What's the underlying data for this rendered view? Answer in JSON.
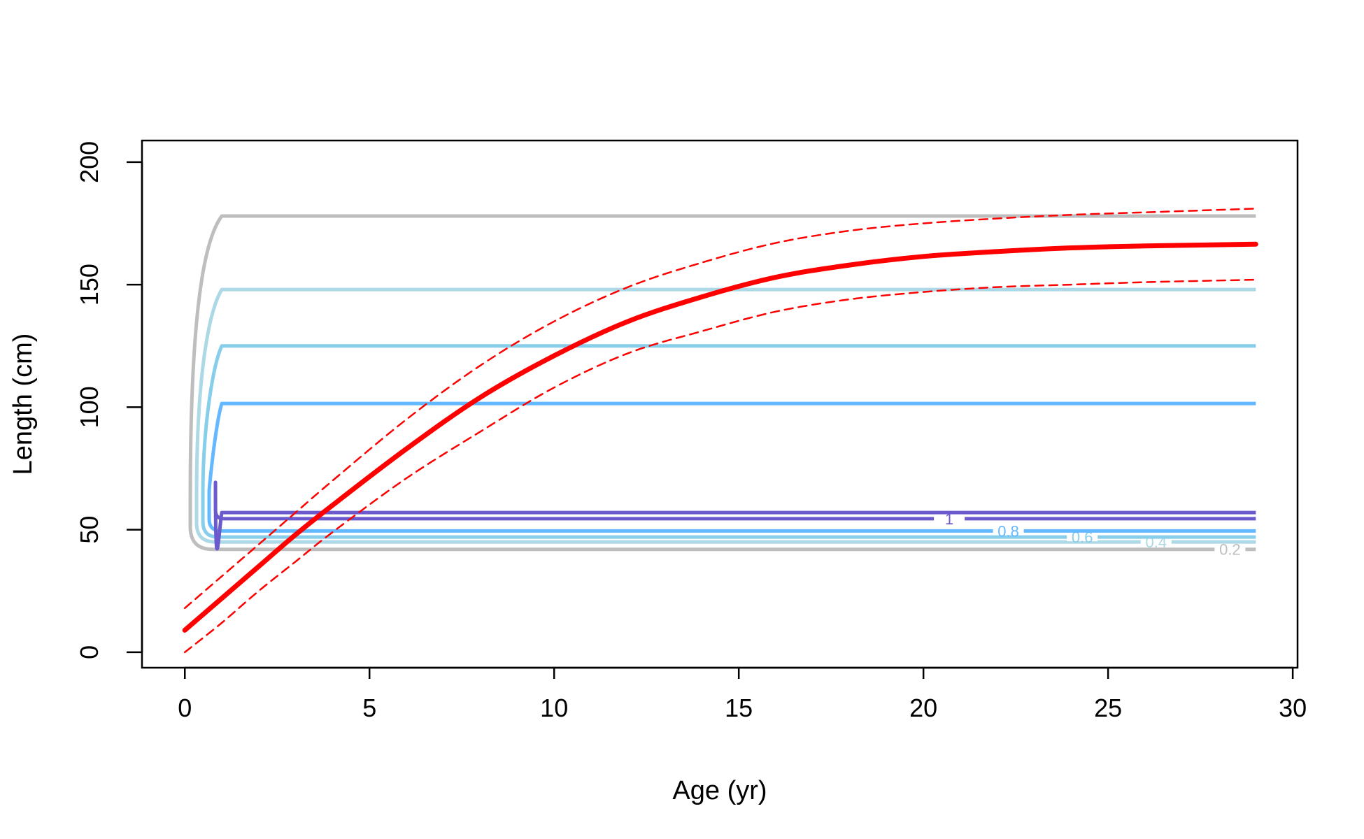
{
  "chart_data": {
    "type": "line",
    "title": "",
    "xlabel": "Age (yr)",
    "ylabel": "Length (cm)",
    "xlim": [
      -1.16,
      30.13
    ],
    "ylim": [
      -6.3,
      208.8
    ],
    "xticks": [
      0,
      5,
      10,
      15,
      20,
      25,
      30
    ],
    "yticks": [
      0,
      50,
      100,
      150,
      200
    ],
    "grid": false,
    "legend": "none",
    "series": [
      {
        "role": "mean",
        "color": "#ff0000",
        "style": "solid",
        "points": [
          [
            0,
            9
          ],
          [
            1,
            22
          ],
          [
            2,
            35
          ],
          [
            3,
            48
          ],
          [
            4,
            60
          ],
          [
            6,
            83
          ],
          [
            8,
            104
          ],
          [
            10,
            121
          ],
          [
            12,
            135
          ],
          [
            14,
            145
          ],
          [
            16,
            153
          ],
          [
            18,
            158
          ],
          [
            20,
            161.5
          ],
          [
            22,
            163.5
          ],
          [
            24,
            165
          ],
          [
            26,
            165.8
          ],
          [
            29,
            166.5
          ]
        ]
      },
      {
        "role": "upper-interval",
        "color": "#ff0000",
        "style": "dashed",
        "points": [
          [
            0,
            18
          ],
          [
            1,
            31
          ],
          [
            2,
            44
          ],
          [
            3,
            57
          ],
          [
            4,
            70
          ],
          [
            6,
            95
          ],
          [
            8,
            117
          ],
          [
            10,
            135
          ],
          [
            12,
            149
          ],
          [
            14,
            159
          ],
          [
            16,
            167
          ],
          [
            18,
            172
          ],
          [
            20,
            175
          ],
          [
            22,
            177
          ],
          [
            24,
            178.5
          ],
          [
            26,
            179.5
          ],
          [
            29,
            181
          ]
        ]
      },
      {
        "role": "lower-interval",
        "color": "#ff0000",
        "style": "dashed",
        "points": [
          [
            0,
            0
          ],
          [
            1,
            12
          ],
          [
            2,
            25
          ],
          [
            3,
            37
          ],
          [
            4,
            49
          ],
          [
            6,
            71
          ],
          [
            8,
            90
          ],
          [
            10,
            108
          ],
          [
            12,
            122
          ],
          [
            14,
            131
          ],
          [
            16,
            139
          ],
          [
            18,
            144
          ],
          [
            20,
            147
          ],
          [
            22,
            149
          ],
          [
            24,
            150
          ],
          [
            26,
            151
          ],
          [
            29,
            152
          ]
        ]
      }
    ],
    "contours": [
      {
        "level": "0.2",
        "color": "#bebebe",
        "top": 178,
        "bottom": 42,
        "label_x": 28.3
      },
      {
        "level": "0.4",
        "color": "#add8e6",
        "top": 148,
        "bottom": 45,
        "label_x": 26.3
      },
      {
        "level": "0.6",
        "color": "#87ceeb",
        "top": 125,
        "bottom": 47,
        "label_x": 24.3
      },
      {
        "level": "0.8",
        "color": "#63b8ff",
        "top": 101.5,
        "bottom": 49.5,
        "label_x": 22.3
      },
      {
        "level": "1",
        "color": "#6a5acd",
        "top": 57,
        "bottom": 54.5,
        "label_x": 20.7
      }
    ],
    "contour_x_start": 1,
    "contour_x_end": 29
  }
}
